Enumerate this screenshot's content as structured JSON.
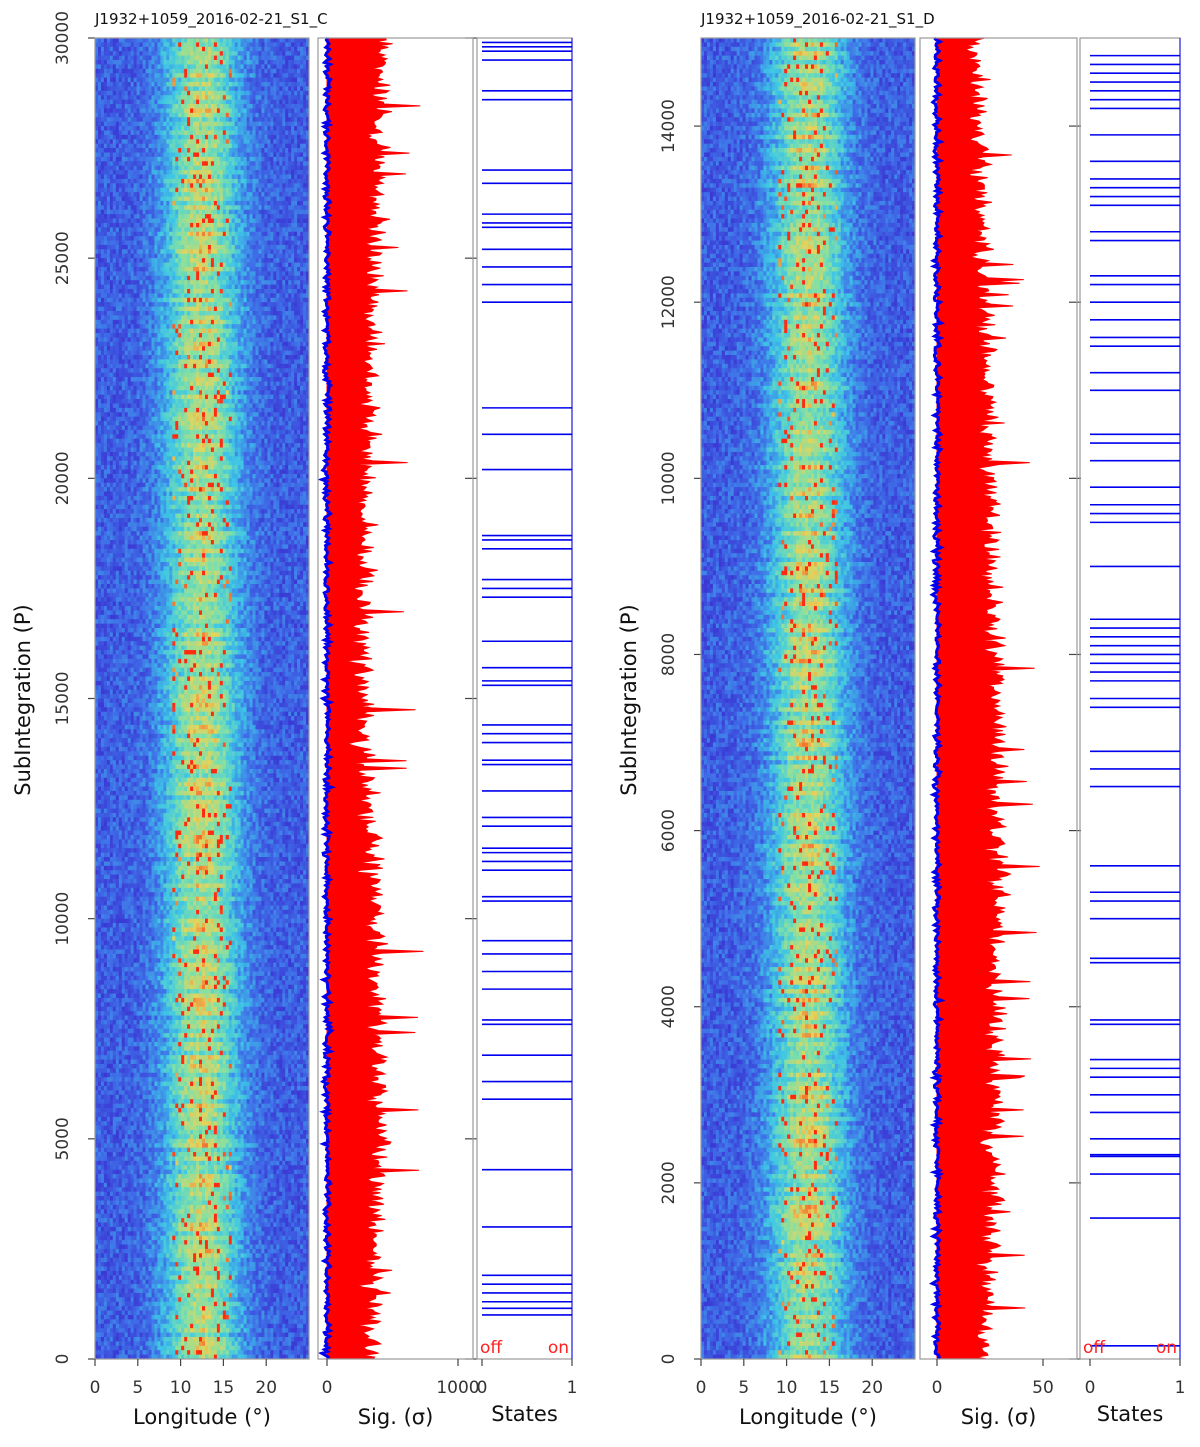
{
  "chart_data": [
    {
      "type": "heatmap",
      "title": "J1932+1059_2016-02-21_S1_C",
      "ylabel": "SubIntegration (P)",
      "ylim": [
        0,
        30000
      ],
      "yticks": [
        "0",
        "5000",
        "10000",
        "15000",
        "20000",
        "25000",
        "30000"
      ],
      "panels": [
        {
          "name": "pulse-stack",
          "xlabel": "Longitude (°)",
          "xlim": [
            0,
            25
          ],
          "xticks": [
            "0",
            "5",
            "10",
            "15",
            "20"
          ],
          "colormap": [
            "#3a2dd0",
            "#3f6fe8",
            "#3ec6e6",
            "#7fe0a8",
            "#e6d45a",
            "#ff2a10"
          ],
          "profile_center": 12.5,
          "profile_width": 9
        },
        {
          "name": "significance",
          "xlabel": "Sig. (σ)",
          "xlim": [
            0,
            1000
          ],
          "xticks": [
            "0",
            "1000"
          ],
          "colors": {
            "offpulse": "#0000ee",
            "onpulse": "#ff0000"
          },
          "onpulse_mean_sigma": [
            [
              0,
              330
            ],
            [
              5000,
              400
            ],
            [
              10000,
              370
            ],
            [
              15000,
              260
            ],
            [
              20000,
              290
            ],
            [
              25000,
              360
            ],
            [
              30000,
              420
            ]
          ],
          "onpulse_spread_sigma": 200
        },
        {
          "name": "states",
          "xlabel": "States",
          "xlim": [
            0,
            1
          ],
          "xticks": [
            "0",
            "1"
          ],
          "off_label": "off",
          "on_label": "on",
          "state_color": "#0000ee",
          "off_subintegrations": [
            1000,
            1150,
            1300,
            1500,
            1700,
            1900,
            3000,
            4300,
            5900,
            6300,
            6900,
            7600,
            7700,
            8400,
            8800,
            9200,
            9500,
            10400,
            10500,
            11100,
            11300,
            11500,
            11600,
            12100,
            12300,
            12900,
            13500,
            13600,
            14000,
            14200,
            14400,
            15300,
            15400,
            15700,
            16300,
            17300,
            17500,
            17700,
            18400,
            18600,
            18700,
            20200,
            21000,
            21600,
            24000,
            24400,
            24800,
            25200,
            25700,
            25800,
            26000,
            26700,
            27000,
            28600,
            28800,
            29500,
            29700,
            29800,
            29900
          ]
        }
      ]
    },
    {
      "type": "heatmap",
      "title": "J1932+1059_2016-02-21_S1_D",
      "ylabel": "SubIntegration (P)",
      "ylim": [
        0,
        15000
      ],
      "yticks": [
        "0",
        "2000",
        "4000",
        "6000",
        "8000",
        "10000",
        "12000",
        "14000"
      ],
      "panels": [
        {
          "name": "pulse-stack",
          "xlabel": "Longitude (°)",
          "xlim": [
            0,
            25
          ],
          "xticks": [
            "0",
            "5",
            "10",
            "15",
            "20"
          ],
          "colormap": [
            "#3a2dd0",
            "#3f6fe8",
            "#3ec6e6",
            "#7fe0a8",
            "#e6d45a",
            "#ff2a10"
          ],
          "profile_center": 12.5,
          "profile_width": 9
        },
        {
          "name": "significance",
          "xlabel": "Sig. (σ)",
          "xlim": [
            0,
            60
          ],
          "xticks": [
            "0",
            "50"
          ],
          "colors": {
            "offpulse": "#0000ee",
            "onpulse": "#ff0000"
          },
          "onpulse_mean_sigma": [
            [
              0,
              22
            ],
            [
              2000,
              26
            ],
            [
              4000,
              27
            ],
            [
              6000,
              29
            ],
            [
              8000,
              27
            ],
            [
              10000,
              25
            ],
            [
              12000,
              22
            ],
            [
              14000,
              20
            ],
            [
              15000,
              19
            ]
          ],
          "onpulse_spread_sigma": 12
        },
        {
          "name": "states",
          "xlabel": "States",
          "xlim": [
            0,
            1
          ],
          "xticks": [
            "0",
            "1"
          ],
          "off_label": "off",
          "on_label": "on",
          "state_color": "#0000ee",
          "off_subintegrations": [
            150,
            1600,
            2100,
            2300,
            2320,
            2500,
            2800,
            3000,
            3200,
            3300,
            3400,
            3800,
            3850,
            4500,
            4550,
            5000,
            5200,
            5300,
            5600,
            6500,
            6700,
            6900,
            7400,
            7500,
            7700,
            7800,
            7900,
            8000,
            8100,
            8200,
            8300,
            8400,
            9000,
            9500,
            9600,
            9700,
            9900,
            10200,
            10400,
            10500,
            11000,
            11200,
            11500,
            11600,
            11800,
            12000,
            12200,
            12300,
            12700,
            12800,
            13100,
            13200,
            13300,
            13400,
            13600,
            13900,
            14200,
            14300,
            14400,
            14500,
            14600,
            14700,
            14800
          ]
        }
      ]
    }
  ]
}
